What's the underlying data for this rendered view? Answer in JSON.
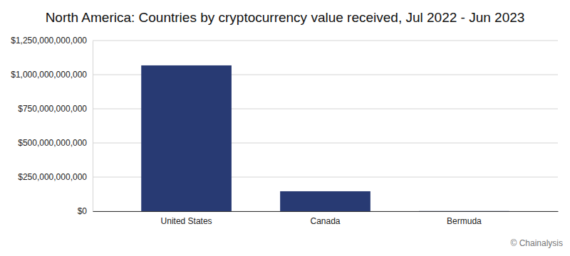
{
  "chart_data": {
    "type": "bar",
    "title": "North America: Countries by cryptocurrency value received, Jul 2022 - Jun 2023",
    "categories": [
      "United States",
      "Canada",
      "Bermuda"
    ],
    "values": [
      1068000000000,
      146000000000,
      1000000000
    ],
    "color": "#283a73",
    "ylim": [
      0,
      1250000000000
    ],
    "yticks": [
      {
        "value": 0,
        "label": "$0"
      },
      {
        "value": 250000000000,
        "label": "$250,000,000,000"
      },
      {
        "value": 500000000000,
        "label": "$500,000,000,000"
      },
      {
        "value": 750000000000,
        "label": "$750,000,000,000"
      },
      {
        "value": 1000000000000,
        "label": "$1,000,000,000,000"
      },
      {
        "value": 1250000000000,
        "label": "$1,250,000,000,000"
      }
    ],
    "grid": true,
    "source": "© Chainalysis"
  }
}
